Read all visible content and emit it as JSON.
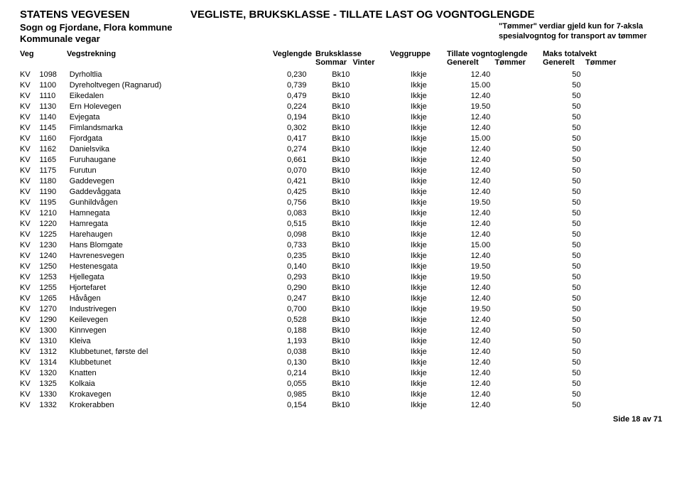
{
  "header": {
    "agency": "STATENS VEGVESEN",
    "title": "VEGLISTE,  BRUKSKLASSE - TILLATE LAST OG VOGNTOGLENGDE",
    "region1": "Sogn og Fjordane, Flora kommune",
    "region2": "Kommunale vegar",
    "note1": "\"Tømmer\" verdiar gjeld kun for 7-aksla",
    "note2": "spesialvogntog for transport av tømmer"
  },
  "columns": {
    "veg": "Veg",
    "strekning": "Vegstrekning",
    "lengde": "Veglengde",
    "bruksklasse": "Bruksklasse",
    "bruksklasse_sub1": "Sommar",
    "bruksklasse_sub2": "Vinter",
    "gruppe": "Veggruppe",
    "tillate": "Tillate vogntoglengde",
    "tillate_sub1": "Generelt",
    "tillate_sub2": "Tømmer",
    "maks": "Maks totalvekt",
    "maks_sub1": "Generelt",
    "maks_sub2": "Tømmer"
  },
  "rows": [
    {
      "t": "KV",
      "n": "1098",
      "name": "Dyrholtlia",
      "len": "0,230",
      "kl": "Bk10",
      "grp": "Ikkje",
      "gen": "12.40",
      "tom": "",
      "mg": "50",
      "mt": ""
    },
    {
      "t": "KV",
      "n": "1100",
      "name": "Dyreholtvegen (Ragnarud)",
      "len": "0,739",
      "kl": "Bk10",
      "grp": "Ikkje",
      "gen": "15.00",
      "tom": "",
      "mg": "50",
      "mt": ""
    },
    {
      "t": "KV",
      "n": "1110",
      "name": "Eikedalen",
      "len": "0,479",
      "kl": "Bk10",
      "grp": "Ikkje",
      "gen": "12.40",
      "tom": "",
      "mg": "50",
      "mt": ""
    },
    {
      "t": "KV",
      "n": "1130",
      "name": "Ern Holevegen",
      "len": "0,224",
      "kl": "Bk10",
      "grp": "Ikkje",
      "gen": "19.50",
      "tom": "",
      "mg": "50",
      "mt": ""
    },
    {
      "t": "KV",
      "n": "1140",
      "name": "Evjegata",
      "len": "0,194",
      "kl": "Bk10",
      "grp": "Ikkje",
      "gen": "12.40",
      "tom": "",
      "mg": "50",
      "mt": ""
    },
    {
      "t": "KV",
      "n": "1145",
      "name": "Fimlandsmarka",
      "len": "0,302",
      "kl": "Bk10",
      "grp": "Ikkje",
      "gen": "12.40",
      "tom": "",
      "mg": "50",
      "mt": ""
    },
    {
      "t": "KV",
      "n": "1160",
      "name": "Fjordgata",
      "len": "0,417",
      "kl": "Bk10",
      "grp": "Ikkje",
      "gen": "15.00",
      "tom": "",
      "mg": "50",
      "mt": ""
    },
    {
      "t": "KV",
      "n": "1162",
      "name": "Danielsvika",
      "len": "0,274",
      "kl": "Bk10",
      "grp": "Ikkje",
      "gen": "12.40",
      "tom": "",
      "mg": "50",
      "mt": ""
    },
    {
      "t": "KV",
      "n": "1165",
      "name": "Furuhaugane",
      "len": "0,661",
      "kl": "Bk10",
      "grp": "Ikkje",
      "gen": "12.40",
      "tom": "",
      "mg": "50",
      "mt": ""
    },
    {
      "t": "KV",
      "n": "1175",
      "name": "Furutun",
      "len": "0,070",
      "kl": "Bk10",
      "grp": "Ikkje",
      "gen": "12.40",
      "tom": "",
      "mg": "50",
      "mt": ""
    },
    {
      "t": "KV",
      "n": "1180",
      "name": "Gaddevegen",
      "len": "0,421",
      "kl": "Bk10",
      "grp": "Ikkje",
      "gen": "12.40",
      "tom": "",
      "mg": "50",
      "mt": ""
    },
    {
      "t": "KV",
      "n": "1190",
      "name": "Gaddevåggata",
      "len": "0,425",
      "kl": "Bk10",
      "grp": "Ikkje",
      "gen": "12.40",
      "tom": "",
      "mg": "50",
      "mt": ""
    },
    {
      "t": "KV",
      "n": "1195",
      "name": "Gunhildvågen",
      "len": "0,756",
      "kl": "Bk10",
      "grp": "Ikkje",
      "gen": "19.50",
      "tom": "",
      "mg": "50",
      "mt": ""
    },
    {
      "t": "KV",
      "n": "1210",
      "name": "Hamnegata",
      "len": "0,083",
      "kl": "Bk10",
      "grp": "Ikkje",
      "gen": "12.40",
      "tom": "",
      "mg": "50",
      "mt": ""
    },
    {
      "t": "KV",
      "n": "1220",
      "name": "Hamregata",
      "len": "0,515",
      "kl": "Bk10",
      "grp": "Ikkje",
      "gen": "12.40",
      "tom": "",
      "mg": "50",
      "mt": ""
    },
    {
      "t": "KV",
      "n": "1225",
      "name": "Harehaugen",
      "len": "0,098",
      "kl": "Bk10",
      "grp": "Ikkje",
      "gen": "12.40",
      "tom": "",
      "mg": "50",
      "mt": ""
    },
    {
      "t": "KV",
      "n": "1230",
      "name": "Hans Blomgate",
      "len": "0,733",
      "kl": "Bk10",
      "grp": "Ikkje",
      "gen": "15.00",
      "tom": "",
      "mg": "50",
      "mt": ""
    },
    {
      "t": "KV",
      "n": "1240",
      "name": "Havrenesvegen",
      "len": "0,235",
      "kl": "Bk10",
      "grp": "Ikkje",
      "gen": "12.40",
      "tom": "",
      "mg": "50",
      "mt": ""
    },
    {
      "t": "KV",
      "n": "1250",
      "name": "Hestenesgata",
      "len": "0,140",
      "kl": "Bk10",
      "grp": "Ikkje",
      "gen": "19.50",
      "tom": "",
      "mg": "50",
      "mt": ""
    },
    {
      "t": "KV",
      "n": "1253",
      "name": "Hjellegata",
      "len": "0,293",
      "kl": "Bk10",
      "grp": "Ikkje",
      "gen": "19.50",
      "tom": "",
      "mg": "50",
      "mt": ""
    },
    {
      "t": "KV",
      "n": "1255",
      "name": "Hjortefaret",
      "len": "0,290",
      "kl": "Bk10",
      "grp": "Ikkje",
      "gen": "12.40",
      "tom": "",
      "mg": "50",
      "mt": ""
    },
    {
      "t": "KV",
      "n": "1265",
      "name": "Håvågen",
      "len": "0,247",
      "kl": "Bk10",
      "grp": "Ikkje",
      "gen": "12.40",
      "tom": "",
      "mg": "50",
      "mt": ""
    },
    {
      "t": "KV",
      "n": "1270",
      "name": "Industrivegen",
      "len": "0,700",
      "kl": "Bk10",
      "grp": "Ikkje",
      "gen": "19.50",
      "tom": "",
      "mg": "50",
      "mt": ""
    },
    {
      "t": "KV",
      "n": "1290",
      "name": "Keilevegen",
      "len": "0,528",
      "kl": "Bk10",
      "grp": "Ikkje",
      "gen": "12.40",
      "tom": "",
      "mg": "50",
      "mt": ""
    },
    {
      "t": "KV",
      "n": "1300",
      "name": "Kinnvegen",
      "len": "0,188",
      "kl": "Bk10",
      "grp": "Ikkje",
      "gen": "12.40",
      "tom": "",
      "mg": "50",
      "mt": ""
    },
    {
      "t": "KV",
      "n": "1310",
      "name": "Kleiva",
      "len": "1,193",
      "kl": "Bk10",
      "grp": "Ikkje",
      "gen": "12.40",
      "tom": "",
      "mg": "50",
      "mt": ""
    },
    {
      "t": "KV",
      "n": "1312",
      "name": "Klubbetunet, første del",
      "len": "0,038",
      "kl": "Bk10",
      "grp": "Ikkje",
      "gen": "12.40",
      "tom": "",
      "mg": "50",
      "mt": ""
    },
    {
      "t": "KV",
      "n": "1314",
      "name": "Klubbetunet",
      "len": "0,130",
      "kl": "Bk10",
      "grp": "Ikkje",
      "gen": "12.40",
      "tom": "",
      "mg": "50",
      "mt": ""
    },
    {
      "t": "KV",
      "n": "1320",
      "name": "Knatten",
      "len": "0,214",
      "kl": "Bk10",
      "grp": "Ikkje",
      "gen": "12.40",
      "tom": "",
      "mg": "50",
      "mt": ""
    },
    {
      "t": "KV",
      "n": "1325",
      "name": "Kolkaia",
      "len": "0,055",
      "kl": "Bk10",
      "grp": "Ikkje",
      "gen": "12.40",
      "tom": "",
      "mg": "50",
      "mt": ""
    },
    {
      "t": "KV",
      "n": "1330",
      "name": "Krokavegen",
      "len": "0,985",
      "kl": "Bk10",
      "grp": "Ikkje",
      "gen": "12.40",
      "tom": "",
      "mg": "50",
      "mt": ""
    },
    {
      "t": "KV",
      "n": "1332",
      "name": "Krokerabben",
      "len": "0,154",
      "kl": "Bk10",
      "grp": "Ikkje",
      "gen": "12.40",
      "tom": "",
      "mg": "50",
      "mt": ""
    }
  ],
  "footer": "Side 18 av 71"
}
